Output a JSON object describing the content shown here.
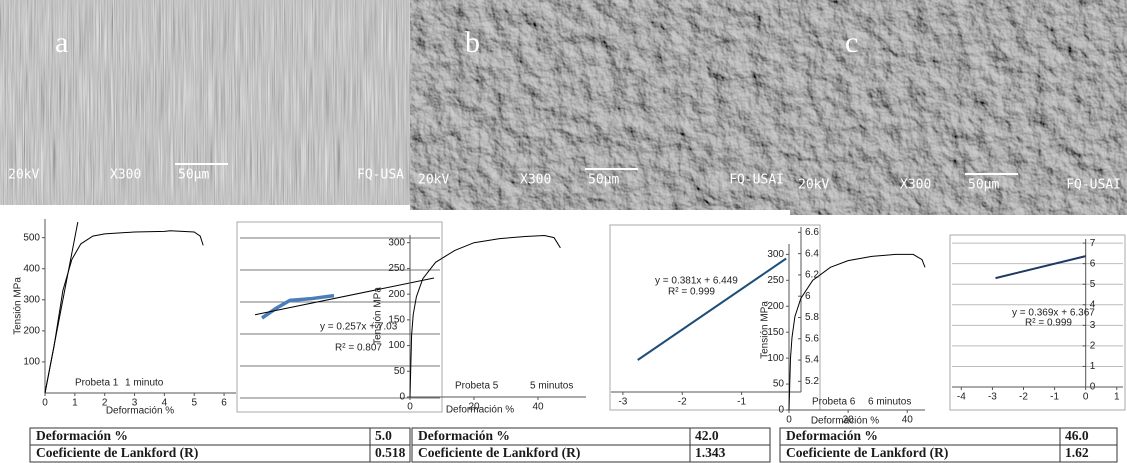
{
  "micrographs": [
    {
      "label": "a",
      "voltage": "20kV",
      "magnification": "X300",
      "scale": "50μm",
      "lab": "FQ-USA"
    },
    {
      "label": "b",
      "voltage": "20kV",
      "magnification": "X300",
      "scale": "50μm",
      "lab": "FQ-USAI"
    },
    {
      "label": "c",
      "voltage": "20kV",
      "magnification": "X300",
      "scale": "50μm",
      "lab": "FQ-USAI"
    }
  ],
  "chart_data": [
    {
      "type": "line",
      "ylabel": "Tensión MPa",
      "xlabel": "Deformación %",
      "annotations": [
        "Probeta 1",
        "1 minuto"
      ],
      "xlim": [
        0,
        6.4
      ],
      "ylim": [
        0,
        560
      ],
      "xticks": [
        0,
        1,
        2,
        3,
        4,
        5,
        6
      ],
      "yticks": [
        100,
        200,
        300,
        400,
        500
      ],
      "series": [
        {
          "color": "#000000",
          "x": [
            0,
            0.3,
            0.6,
            0.9,
            1.2,
            1.6,
            2,
            3,
            4,
            4.2,
            5,
            5.2,
            5.3
          ],
          "values": [
            0,
            150,
            330,
            430,
            480,
            505,
            512,
            518,
            520,
            522,
            518,
            505,
            475
          ]
        },
        {
          "color": "#000000",
          "x": [
            0,
            1.1
          ],
          "values": [
            0,
            550
          ]
        }
      ]
    },
    {
      "type": "line",
      "annotations": [
        "y = 0.257x + 7.03",
        "R² = 0.807"
      ],
      "grid": true,
      "axes": false,
      "tick_labels": false,
      "frame": true,
      "xlim": [
        0,
        10
      ],
      "ylim": [
        0,
        6
      ],
      "yticks": [
        0.5,
        1.5,
        2.5,
        3.5,
        4.5,
        5.5
      ],
      "series": [
        {
          "color": "#4a7ebb",
          "x": [
            1.1,
            1.8,
            2.5,
            3.5,
            4.7
          ],
          "values": [
            3.0,
            3.3,
            3.55,
            3.6,
            3.7
          ]
        },
        {
          "color": "#000000",
          "x": [
            0.75,
            9.7
          ],
          "values": [
            3.1,
            4.25
          ]
        }
      ]
    },
    {
      "type": "line",
      "ylabel": "Tensión MPa",
      "xlabel": "Deformación %",
      "annotations": [
        "Probeta 5",
        "5 minutos"
      ],
      "xlim": [
        0,
        55
      ],
      "ylim": [
        0,
        315
      ],
      "xticks": [
        0,
        20,
        40
      ],
      "yticks": [
        0,
        50,
        100,
        150,
        200,
        250,
        300
      ],
      "series": [
        {
          "color": "#000000",
          "x": [
            0,
            0.5,
            1,
            2,
            4,
            8,
            14,
            20,
            28,
            36,
            42,
            45,
            46,
            47
          ],
          "values": [
            0,
            120,
            160,
            195,
            230,
            262,
            285,
            300,
            308,
            312,
            314,
            310,
            300,
            290
          ]
        }
      ]
    },
    {
      "type": "line",
      "annotations": [
        "y = 0.381x + 6.449",
        "R² = 0.999"
      ],
      "frame": true,
      "y_axis": "zero",
      "xlim": [
        -3.2,
        0
      ],
      "ylim": [
        5.1,
        6.65
      ],
      "xticks": [
        -3,
        -2,
        -1
      ],
      "yticks": [
        5.2,
        5.4,
        5.6,
        5.8,
        6,
        6.2,
        6.4,
        6.6
      ],
      "series": [
        {
          "color": "#1f4e79",
          "x": [
            -2.75,
            -0.25
          ],
          "values": [
            5.401,
            6.354
          ]
        }
      ]
    },
    {
      "type": "line",
      "ylabel": "Tensión MPa",
      "xlabel": "Deformación %",
      "annotations": [
        "Probeta 6",
        "6 minutos"
      ],
      "xlim": [
        0,
        46
      ],
      "ylim": [
        0,
        320
      ],
      "xticks": [
        0,
        20,
        40
      ],
      "yticks": [
        0,
        50,
        100,
        150,
        200,
        250,
        300
      ],
      "series": [
        {
          "color": "#000000",
          "x": [
            0,
            0.5,
            1,
            2,
            4,
            8,
            14,
            20,
            28,
            36,
            42,
            45,
            46
          ],
          "values": [
            0,
            100,
            140,
            180,
            215,
            250,
            275,
            288,
            296,
            300,
            300,
            290,
            275
          ]
        }
      ]
    },
    {
      "type": "line",
      "annotations": [
        "y = 0.369x + 6.367",
        "R² = 0.999"
      ],
      "frame": true,
      "grid": true,
      "y_axis": "zero",
      "xlim": [
        -4.3,
        1.2
      ],
      "ylim": [
        0,
        7.2
      ],
      "xticks": [
        -4,
        -3,
        -2,
        -1,
        0,
        1
      ],
      "yticks": [
        0,
        1,
        2,
        3,
        4,
        5,
        6,
        7
      ],
      "series": [
        {
          "color": "#1f3864",
          "x": [
            -2.9,
            0
          ],
          "values": [
            5.297,
            6.367
          ]
        }
      ]
    }
  ],
  "tables": [
    {
      "rows": [
        [
          "Deformación %",
          "5.0"
        ],
        [
          "Coeficiente de Lankford (R)",
          "0.518"
        ]
      ]
    },
    {
      "rows": [
        [
          "Deformación %",
          "42.0"
        ],
        [
          "Coeficiente de Lankford (R)",
          "1.343"
        ]
      ]
    },
    {
      "rows": [
        [
          "Deformación %",
          "46.0"
        ],
        [
          "Coeficiente de Lankford (R)",
          "1.62"
        ]
      ]
    }
  ]
}
